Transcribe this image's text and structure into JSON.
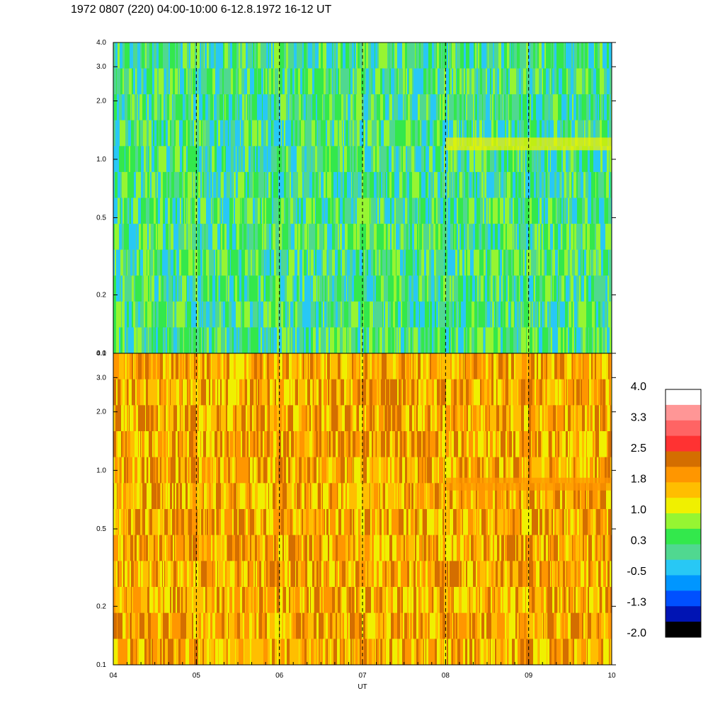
{
  "title": "1972 0807 (220) 04:00-10:00 6-12.8.1972  16-12 UT",
  "chart_data": [
    {
      "type": "heatmap",
      "panel": "top",
      "x_axis": {
        "range": [
          4,
          10
        ],
        "ticks": [
          "04",
          "05",
          "06",
          "07",
          "08",
          "09",
          "10"
        ],
        "tick_values": [
          4,
          5,
          6,
          7,
          8,
          9,
          10
        ],
        "dashed_gridlines_at": [
          5,
          6,
          7,
          8,
          9
        ]
      },
      "y_axis": {
        "scale": "log",
        "range": [
          0.1,
          4.0
        ],
        "ticks": [
          "0.1",
          "0.2",
          "0.5",
          "1.0",
          "2.0",
          "3.0",
          "4.0"
        ],
        "tick_values": [
          0.1,
          0.2,
          0.5,
          1.0,
          2.0,
          3.0,
          4.0
        ]
      },
      "dominant_colors": [
        "#33e84c",
        "#50d890",
        "#96f532",
        "#28c8f5"
      ],
      "feature_band": {
        "x_range": [
          8,
          10
        ],
        "y_value": 1.2,
        "color": "#f0f000"
      }
    },
    {
      "type": "heatmap",
      "panel": "bottom",
      "x_axis": {
        "label": "UT",
        "range": [
          4,
          10
        ],
        "ticks": [
          "04",
          "05",
          "06",
          "07",
          "08",
          "09",
          "10"
        ],
        "tick_values": [
          4,
          5,
          6,
          7,
          8,
          9,
          10
        ],
        "dashed_gridlines_at": [
          5,
          6,
          7,
          8,
          9
        ]
      },
      "y_axis": {
        "scale": "log",
        "range": [
          0.1,
          4.0
        ],
        "ticks": [
          "0.1",
          "0.2",
          "0.5",
          "1.0",
          "2.0",
          "3.0",
          "4.0"
        ],
        "tick_values": [
          0.1,
          0.2,
          0.5,
          1.0,
          2.0,
          3.0,
          4.0
        ]
      },
      "dominant_colors": [
        "#ff9600",
        "#ffbe00",
        "#f0f000",
        "#d46e00"
      ],
      "feature_band": {
        "x_range": [
          8,
          10
        ],
        "y_value": 0.85,
        "color": "#ff9600"
      }
    }
  ],
  "colorbar": {
    "labels": [
      "4.0",
      "3.3",
      "2.5",
      "1.8",
      "1.0",
      "0.3",
      "-0.5",
      "-1.3",
      "-2.0"
    ],
    "colors_top_to_bottom": [
      "#ffffff",
      "#ff9696",
      "#ff6464",
      "#ff3232",
      "#d46e00",
      "#ff9600",
      "#ffbe00",
      "#f0f000",
      "#96f532",
      "#33e84c",
      "#50d890",
      "#28c8f5",
      "#0096ff",
      "#0050ff",
      "#0014b4",
      "#000000"
    ]
  }
}
